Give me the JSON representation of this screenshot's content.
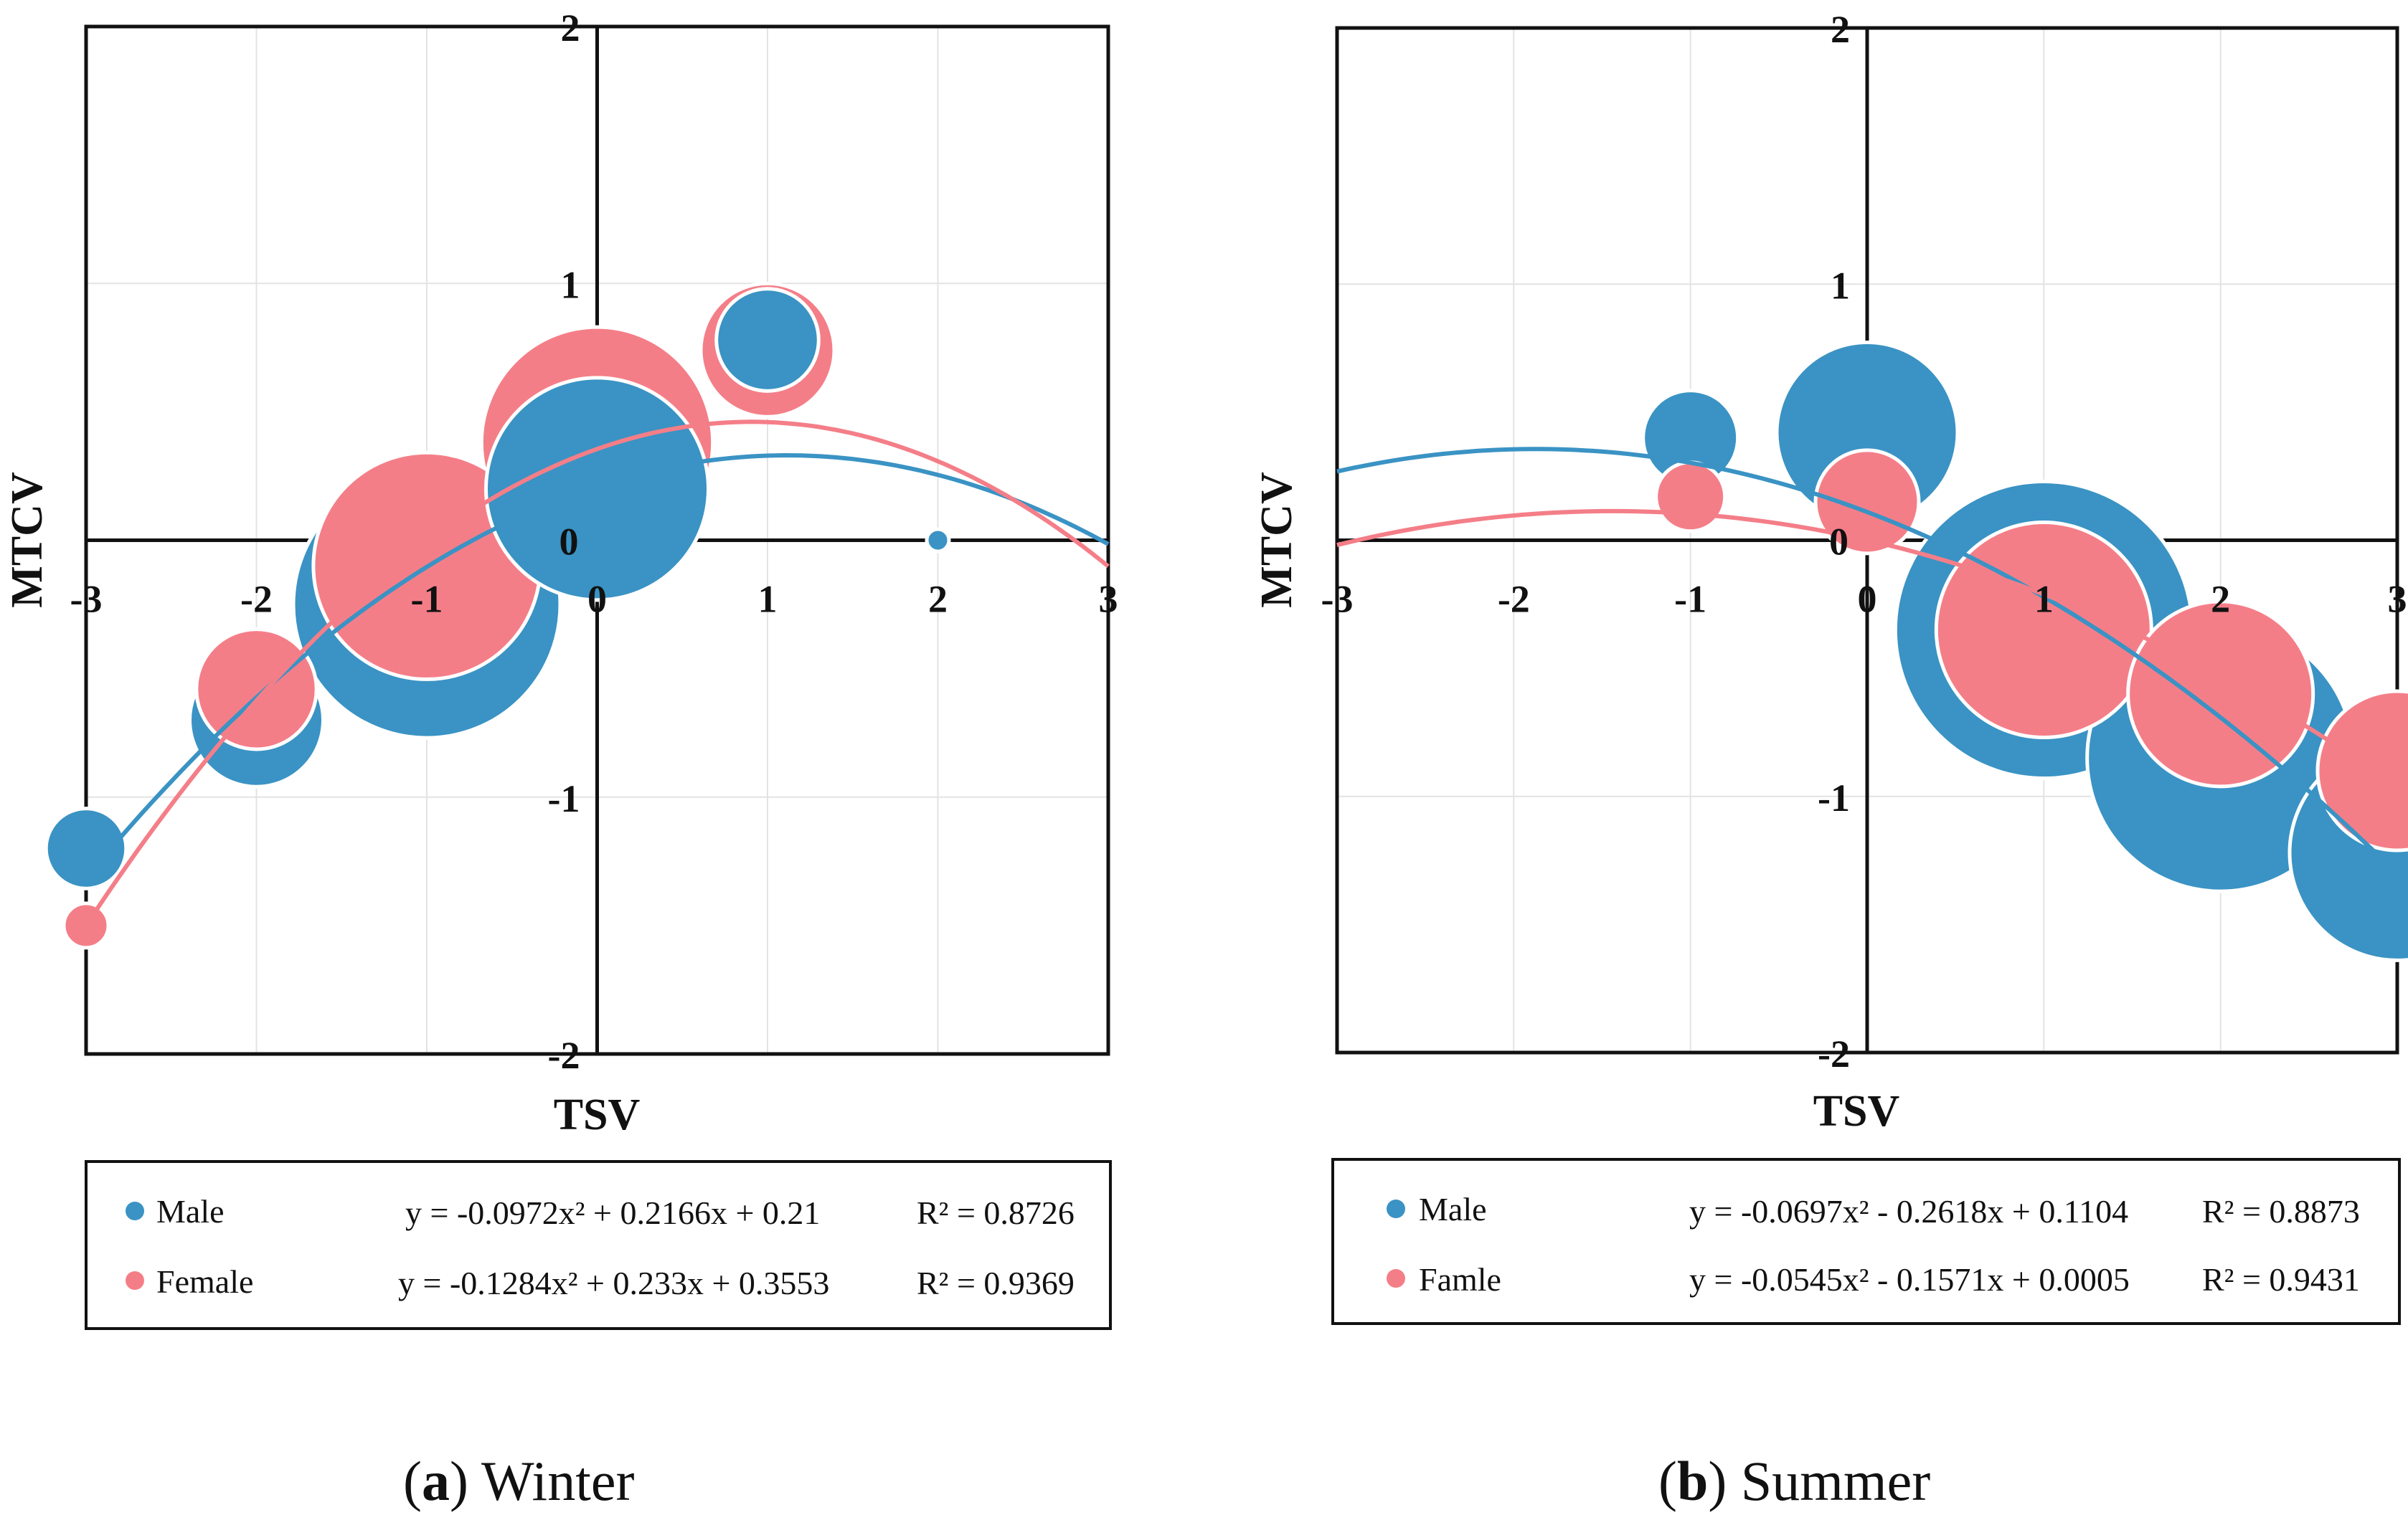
{
  "chart_data": [
    {
      "type": "scatter",
      "caption": {
        "open": "(",
        "letter": "a",
        "close": ")",
        "text": " Winter"
      },
      "xlabel": "TSV",
      "ylabel": "MTCV",
      "xlim": [
        -3,
        3
      ],
      "ylim": [
        -2,
        2
      ],
      "xticks": [
        "-3",
        "-2",
        "-1",
        "0",
        "1",
        "2",
        "3"
      ],
      "yticks": [
        "-2",
        "-1",
        "0",
        "1",
        "2"
      ],
      "series": [
        {
          "name": "Male",
          "color": "#3a93c4",
          "equation": "y = -0.0972x² + 0.2166x + 0.21",
          "r2": "R² = 0.8726",
          "coef": [
            -0.0972,
            0.2166,
            0.21
          ],
          "points": [
            {
              "x": -3,
              "y": -1.2,
              "size": 0.9
            },
            {
              "x": -2,
              "y": -0.7,
              "size": 1.5
            },
            {
              "x": -1,
              "y": -0.25,
              "size": 3.0
            },
            {
              "x": 0,
              "y": 0.2,
              "size": 2.5
            },
            {
              "x": 1,
              "y": 0.78,
              "size": 1.15
            },
            {
              "x": 2,
              "y": 0.0,
              "size": 0.25
            }
          ]
        },
        {
          "name": "Female",
          "color": "#f47e88",
          "equation": "y = -0.1284x² + 0.233x + 0.3553",
          "r2": "R² = 0.9369",
          "coef": [
            -0.1284,
            0.233,
            0.3553
          ],
          "points": [
            {
              "x": -3,
              "y": -1.5,
              "size": 0.5
            },
            {
              "x": -2,
              "y": -0.58,
              "size": 1.35
            },
            {
              "x": -1,
              "y": -0.1,
              "size": 2.55
            },
            {
              "x": 0,
              "y": 0.38,
              "size": 2.6
            },
            {
              "x": 1,
              "y": 0.74,
              "size": 1.5
            }
          ]
        }
      ]
    },
    {
      "type": "scatter",
      "caption": {
        "open": "(",
        "letter": "b",
        "close": ")",
        "text": " Summer"
      },
      "xlabel": "TSV",
      "ylabel": "MTCV",
      "xlim": [
        -3,
        3
      ],
      "ylim": [
        -2,
        2
      ],
      "xticks": [
        "-3",
        "-2",
        "-1",
        "0",
        "1",
        "2",
        "3"
      ],
      "yticks": [
        "-2",
        "-1",
        "0",
        "1",
        "2"
      ],
      "series": [
        {
          "name": "Male",
          "color": "#3a93c4",
          "equation": "y = -0.0697x² - 0.2618x + 0.1104",
          "r2": "R² = 0.8873",
          "coef": [
            -0.0697,
            -0.2618,
            0.1104
          ],
          "points": [
            {
              "x": -1,
              "y": 0.4,
              "size": 1.1
            },
            {
              "x": 0,
              "y": 0.42,
              "size": 2.1
            },
            {
              "x": 1,
              "y": -0.35,
              "size": 3.45
            },
            {
              "x": 2,
              "y": -0.85,
              "size": 3.1
            },
            {
              "x": 3,
              "y": -1.22,
              "size": 2.5
            }
          ]
        },
        {
          "name": "Famle",
          "color": "#f47e88",
          "equation": "y = -0.0545x² - 0.1571x + 0.0005",
          "r2": "R² = 0.9431",
          "coef": [
            -0.0545,
            -0.1571,
            0.0005
          ],
          "points": [
            {
              "x": -1,
              "y": 0.17,
              "size": 0.8
            },
            {
              "x": 0,
              "y": 0.15,
              "size": 1.2
            },
            {
              "x": 1,
              "y": -0.35,
              "size": 2.5
            },
            {
              "x": 2,
              "y": -0.6,
              "size": 2.15
            },
            {
              "x": 3,
              "y": -0.9,
              "size": 1.85
            }
          ]
        }
      ]
    }
  ]
}
